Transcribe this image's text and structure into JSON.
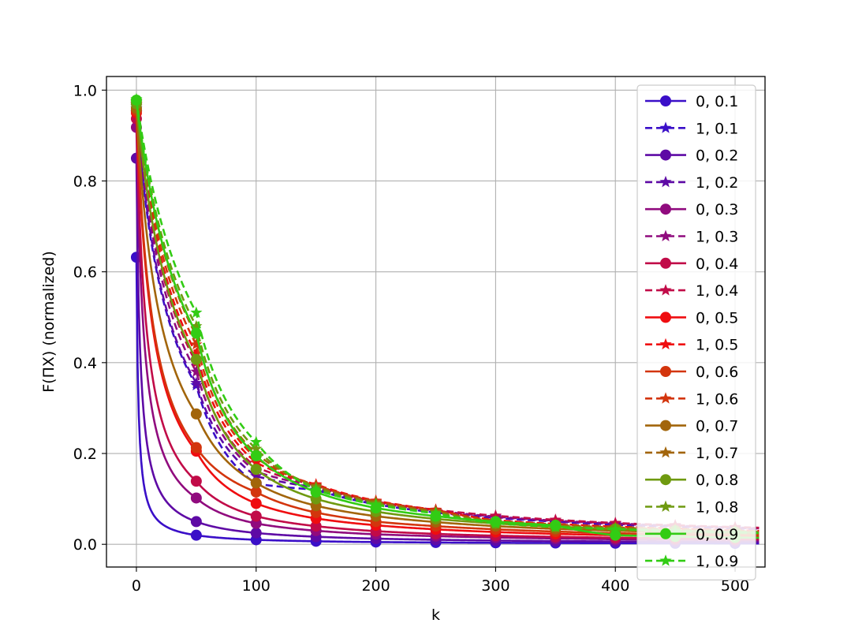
{
  "chart_data": {
    "type": "line",
    "title": "",
    "xlabel": "k",
    "ylabel": "F(ΠX) (normalized)",
    "xlim": [
      -25,
      525
    ],
    "ylim": [
      -0.05,
      1.03
    ],
    "xticks": [
      0,
      100,
      200,
      300,
      400,
      500
    ],
    "yticks": [
      0.0,
      0.2,
      0.4,
      0.6,
      0.8,
      1.0
    ],
    "xtick_labels": [
      "0",
      "100",
      "200",
      "300",
      "400",
      "500"
    ],
    "ytick_labels": [
      "0.0",
      "0.2",
      "0.4",
      "0.6",
      "0.8",
      "1.0"
    ],
    "grid": true,
    "legend_position": "right",
    "marker_x": [
      0,
      50,
      100,
      150,
      200,
      250,
      300,
      350,
      400,
      450,
      500
    ],
    "series": [
      {
        "name": "0, 0.1",
        "color": "#3a0fc8",
        "dash": false,
        "marker": "circle",
        "values": [
          0.632,
          0.02,
          0.01,
          0.0067,
          0.005,
          0.004,
          0.0033,
          0.0029,
          0.0025,
          0.0022,
          0.002
        ]
      },
      {
        "name": "1, 0.1",
        "color": "#3a0fc8",
        "dash": true,
        "marker": "star",
        "values": [
          0.95,
          0.35,
          0.133,
          0.12,
          0.088,
          0.07,
          0.058,
          0.05,
          0.043,
          0.039,
          0.035
        ]
      },
      {
        "name": "0, 0.2",
        "color": "#5e0aa5",
        "dash": false,
        "marker": "circle",
        "values": [
          0.85,
          0.05,
          0.025,
          0.0167,
          0.0125,
          0.01,
          0.0083,
          0.0071,
          0.0063,
          0.0056,
          0.005
        ]
      },
      {
        "name": "1, 0.2",
        "color": "#5e0aa5",
        "dash": true,
        "marker": "star",
        "values": [
          0.96,
          0.355,
          0.15,
          0.125,
          0.09,
          0.072,
          0.06,
          0.051,
          0.045,
          0.04,
          0.036
        ]
      },
      {
        "name": "0, 0.3",
        "color": "#900b7e",
        "dash": false,
        "marker": "circle",
        "values": [
          0.918,
          0.102,
          0.046,
          0.03,
          0.022,
          0.018,
          0.015,
          0.0128,
          0.0112,
          0.01,
          0.009
        ]
      },
      {
        "name": "1, 0.3",
        "color": "#900b7e",
        "dash": true,
        "marker": "star",
        "values": [
          0.965,
          0.38,
          0.16,
          0.128,
          0.092,
          0.074,
          0.061,
          0.052,
          0.046,
          0.041,
          0.037
        ]
      },
      {
        "name": "0, 0.4",
        "color": "#c10b48",
        "dash": false,
        "marker": "circle",
        "values": [
          0.937,
          0.139,
          0.062,
          0.04,
          0.029,
          0.023,
          0.019,
          0.0165,
          0.0145,
          0.013,
          0.0115
        ]
      },
      {
        "name": "1, 0.4",
        "color": "#c10b48",
        "dash": true,
        "marker": "star",
        "values": [
          0.968,
          0.4,
          0.17,
          0.13,
          0.094,
          0.076,
          0.063,
          0.054,
          0.047,
          0.042,
          0.038
        ]
      },
      {
        "name": "0, 0.5",
        "color": "#ef0d10",
        "dash": false,
        "marker": "circle",
        "values": [
          0.95,
          0.205,
          0.09,
          0.057,
          0.042,
          0.033,
          0.027,
          0.023,
          0.02,
          0.018,
          0.016
        ]
      },
      {
        "name": "1, 0.5",
        "color": "#ef0d10",
        "dash": true,
        "marker": "star",
        "values": [
          0.97,
          0.42,
          0.18,
          0.132,
          0.096,
          0.076,
          0.053,
          0.045,
          0.039,
          0.035,
          0.031
        ]
      },
      {
        "name": "0, 0.6",
        "color": "#d3350d",
        "dash": false,
        "marker": "circle",
        "values": [
          0.955,
          0.213,
          0.115,
          0.07,
          0.05,
          0.04,
          0.033,
          0.028,
          0.0245,
          0.022,
          0.02
        ]
      },
      {
        "name": "1, 0.6",
        "color": "#d3350d",
        "dash": true,
        "marker": "star",
        "values": [
          0.972,
          0.44,
          0.19,
          0.13,
          0.095,
          0.075,
          0.052,
          0.044,
          0.038,
          0.034,
          0.03
        ]
      },
      {
        "name": "0, 0.7",
        "color": "#a2650b",
        "dash": false,
        "marker": "circle",
        "values": [
          0.96,
          0.287,
          0.135,
          0.085,
          0.062,
          0.049,
          0.04,
          0.034,
          0.03,
          0.0265,
          0.024
        ]
      },
      {
        "name": "1, 0.7",
        "color": "#a2650b",
        "dash": true,
        "marker": "star",
        "values": [
          0.974,
          0.46,
          0.2,
          0.128,
          0.093,
          0.073,
          0.05,
          0.042,
          0.037,
          0.033,
          0.029
        ]
      },
      {
        "name": "0, 0.8",
        "color": "#6f9a10",
        "dash": false,
        "marker": "circle",
        "values": [
          0.97,
          0.407,
          0.165,
          0.1,
          0.072,
          0.056,
          0.046,
          0.039,
          0.034,
          0.03,
          0.027
        ]
      },
      {
        "name": "1, 0.8",
        "color": "#6f9a10",
        "dash": true,
        "marker": "star",
        "values": [
          0.976,
          0.48,
          0.21,
          0.125,
          0.09,
          0.07,
          0.048,
          0.04,
          0.035,
          0.031,
          0.028
        ]
      },
      {
        "name": "0, 0.9",
        "color": "#32cc14",
        "dash": false,
        "marker": "circle",
        "values": [
          0.978,
          0.465,
          0.195,
          0.115,
          0.08,
          0.062,
          0.05,
          0.042,
          0.02,
          0.017,
          0.015
        ]
      },
      {
        "name": "1, 0.9",
        "color": "#32cc14",
        "dash": true,
        "marker": "star",
        "values": [
          0.98,
          0.51,
          0.225,
          0.12,
          0.087,
          0.068,
          0.046,
          0.038,
          0.033,
          0.029,
          0.026
        ]
      }
    ]
  }
}
